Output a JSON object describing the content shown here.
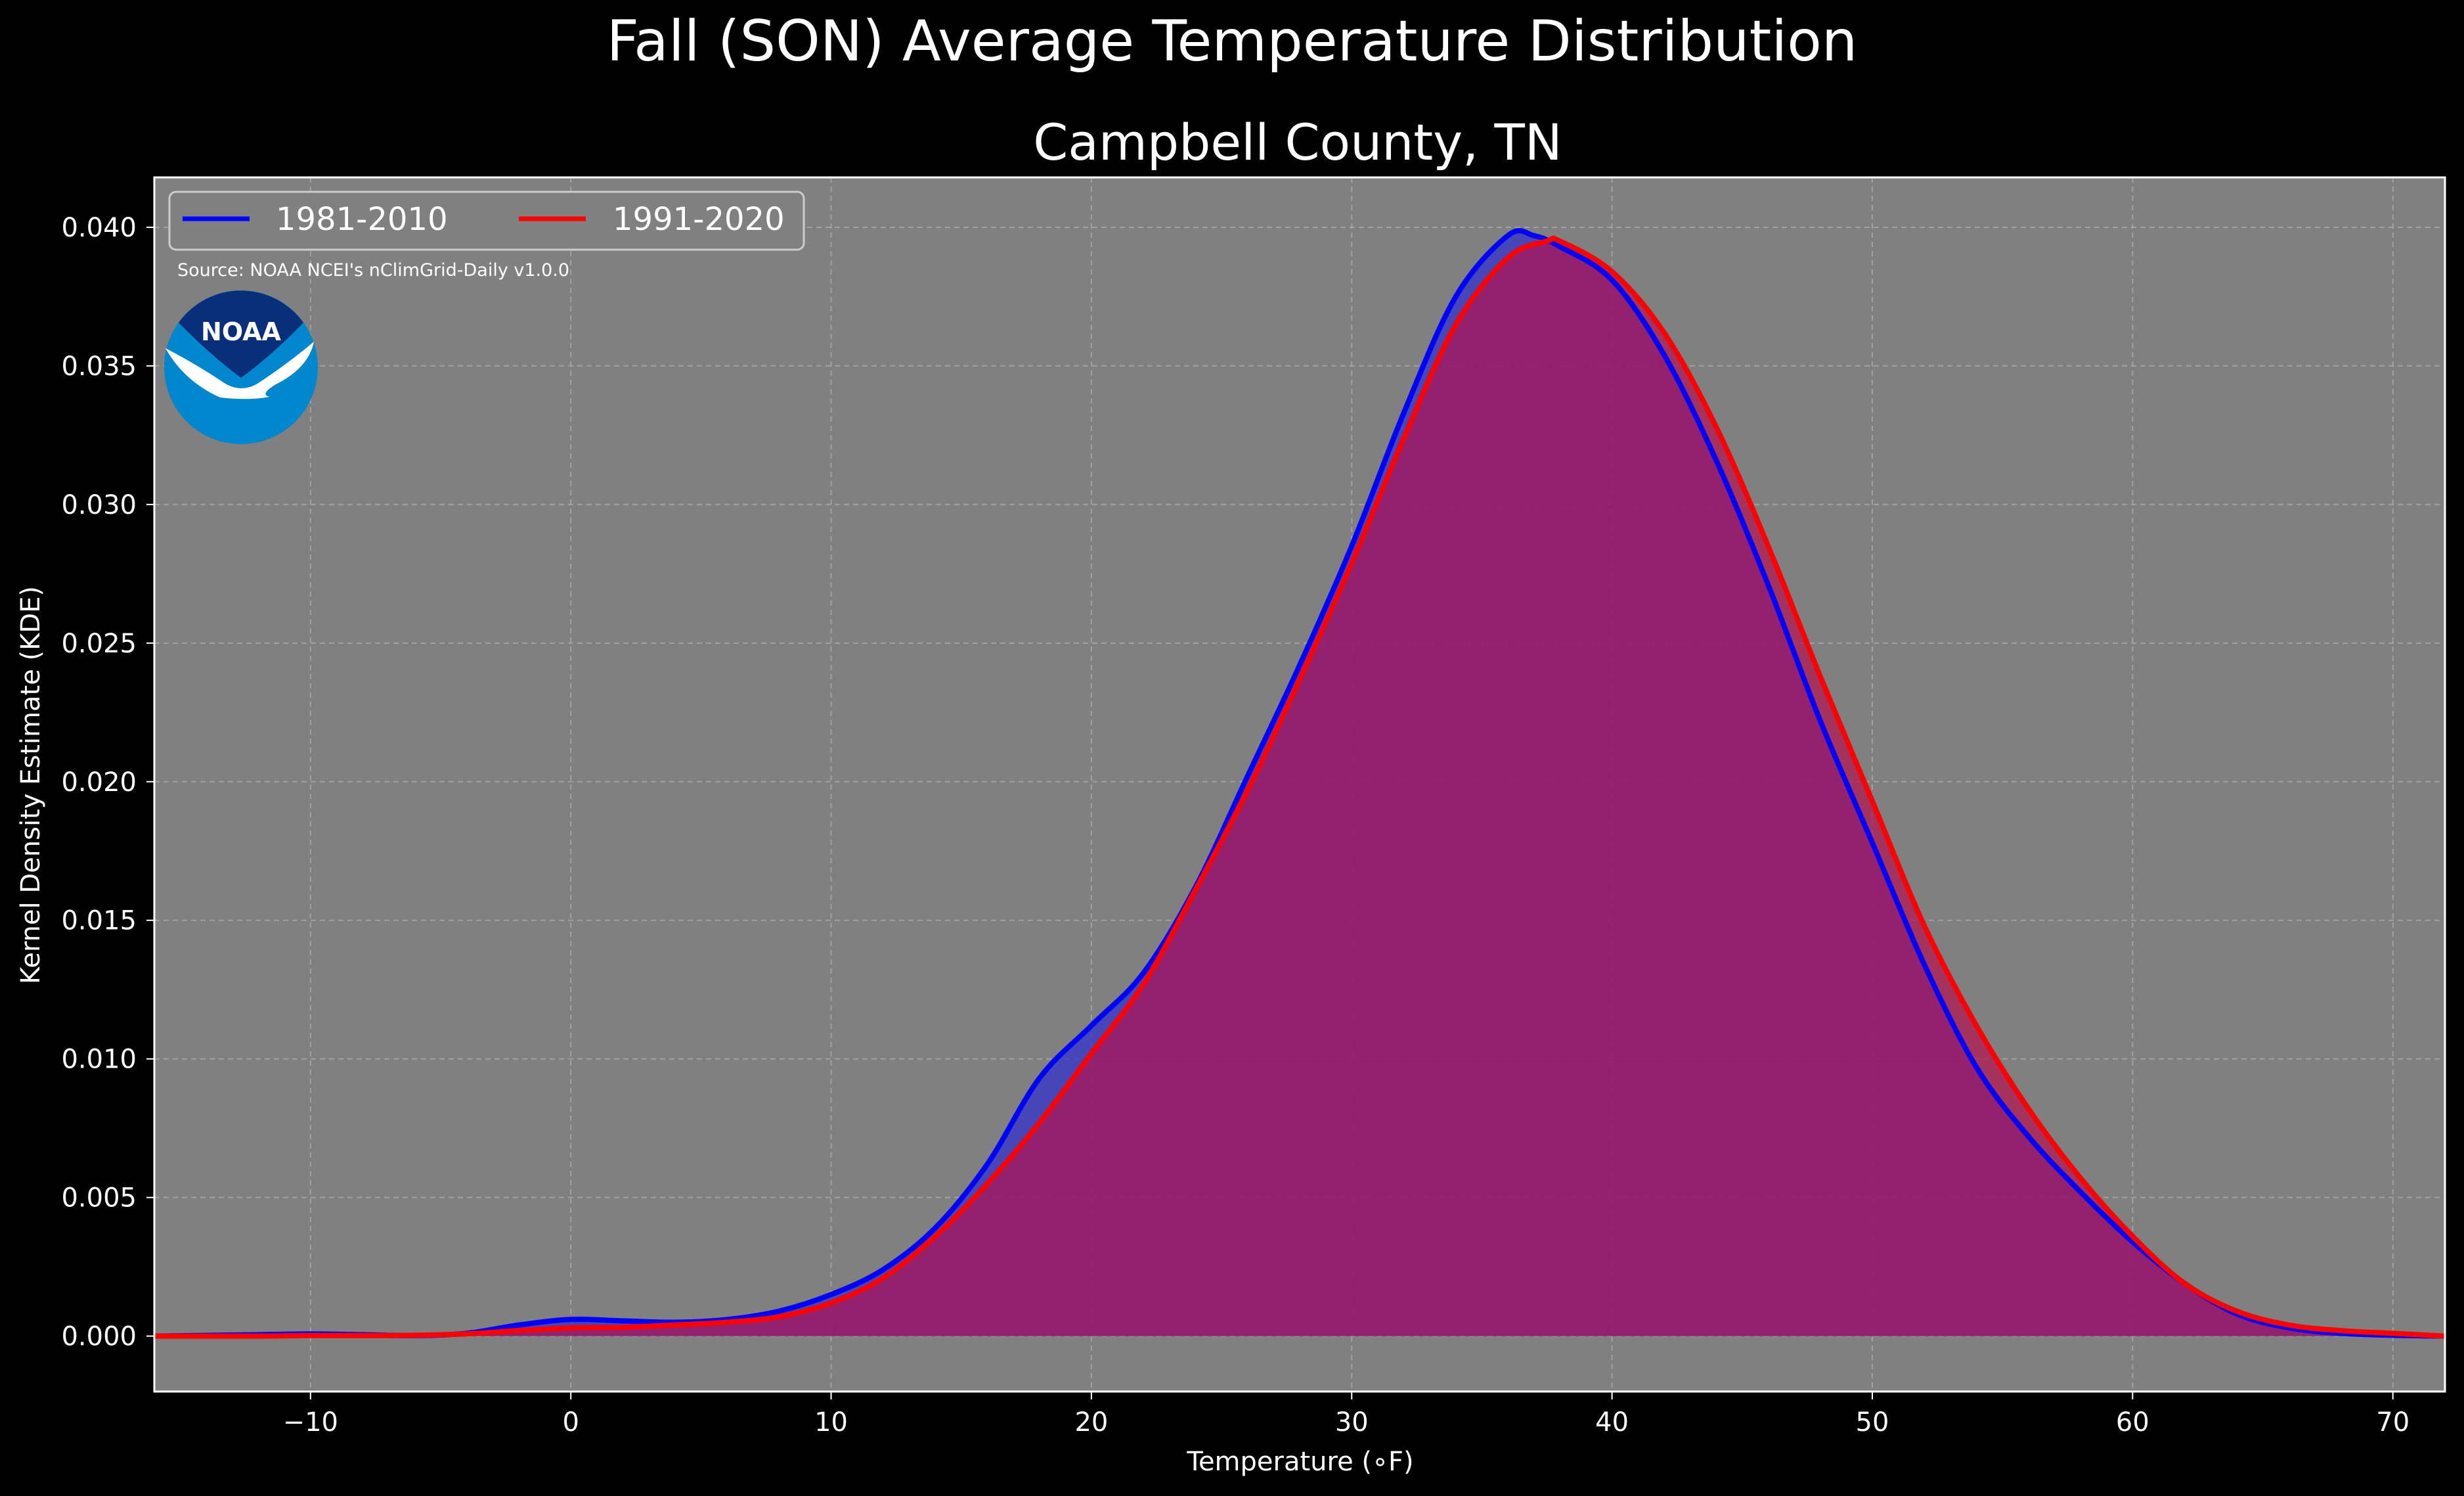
{
  "figure": {
    "suptitle": "Fall (SON) Average Temperature Distribution",
    "source": "Source: NOAA NCEI's nClimGrid-Daily v1.0.0",
    "logo_text": "NOAA",
    "background_color": "#000000",
    "plot_background_color": "#808080"
  },
  "chart_data": {
    "type": "area",
    "title": "Campbell County, TN",
    "xlabel": "Temperature (∘F)",
    "ylabel": "Kernel Density Estimate (KDE)",
    "xlim": [
      -16,
      72
    ],
    "ylim": [
      -0.002,
      0.0418
    ],
    "xticks": [
      -10,
      0,
      10,
      20,
      30,
      40,
      50,
      60,
      70
    ],
    "xtick_labels": [
      "−10",
      "0",
      "10",
      "20",
      "30",
      "40",
      "50",
      "60",
      "70"
    ],
    "yticks": [
      0.0,
      0.005,
      0.01,
      0.015,
      0.02,
      0.025,
      0.03,
      0.035,
      0.04
    ],
    "ytick_labels": [
      "0.000",
      "0.005",
      "0.010",
      "0.015",
      "0.020",
      "0.025",
      "0.030",
      "0.035",
      "0.040"
    ],
    "grid": true,
    "legend_position": "top-left",
    "series": [
      {
        "name": "1981-2010",
        "color": "#0000ff",
        "fill_color": "#3333cc",
        "points": [
          [
            -16,
            0.0
          ],
          [
            -12,
            5e-05
          ],
          [
            -10,
            8e-05
          ],
          [
            -8,
            5e-05
          ],
          [
            -6,
            2e-05
          ],
          [
            -4,
            0.0001
          ],
          [
            -2,
            0.0004
          ],
          [
            0,
            0.0006
          ],
          [
            2,
            0.00055
          ],
          [
            4,
            0.0005
          ],
          [
            6,
            0.0006
          ],
          [
            8,
            0.0009
          ],
          [
            10,
            0.0015
          ],
          [
            12,
            0.0024
          ],
          [
            14,
            0.0039
          ],
          [
            16,
            0.0062
          ],
          [
            18,
            0.0093
          ],
          [
            20,
            0.0112
          ],
          [
            22,
            0.0131
          ],
          [
            24,
            0.0162
          ],
          [
            26,
            0.0202
          ],
          [
            28,
            0.0242
          ],
          [
            30,
            0.0285
          ],
          [
            32,
            0.0333
          ],
          [
            34,
            0.0375
          ],
          [
            36,
            0.0397
          ],
          [
            37,
            0.0397
          ],
          [
            38,
            0.0393
          ],
          [
            40,
            0.0381
          ],
          [
            42,
            0.0354
          ],
          [
            44,
            0.0316
          ],
          [
            46,
            0.0271
          ],
          [
            48,
            0.0222
          ],
          [
            50,
            0.0178
          ],
          [
            52,
            0.0134
          ],
          [
            54,
            0.0097
          ],
          [
            56,
            0.0072
          ],
          [
            58,
            0.0052
          ],
          [
            60,
            0.0034
          ],
          [
            62,
            0.0019
          ],
          [
            64,
            0.0008
          ],
          [
            66,
            0.0003
          ],
          [
            68,
            0.0001
          ],
          [
            70,
            3e-05
          ],
          [
            72,
            0.0
          ]
        ]
      },
      {
        "name": "1991-2020",
        "color": "#ff0000",
        "fill_color": "#b3134f",
        "points": [
          [
            -16,
            0.0
          ],
          [
            -12,
            0.0
          ],
          [
            -10,
            2e-05
          ],
          [
            -8,
            2e-05
          ],
          [
            -6,
            3e-05
          ],
          [
            -4,
            8e-05
          ],
          [
            -2,
            0.0002
          ],
          [
            0,
            0.0003
          ],
          [
            2,
            0.00032
          ],
          [
            4,
            0.0004
          ],
          [
            6,
            0.0005
          ],
          [
            8,
            0.0007
          ],
          [
            10,
            0.0012
          ],
          [
            12,
            0.0021
          ],
          [
            14,
            0.0036
          ],
          [
            16,
            0.0055
          ],
          [
            18,
            0.0077
          ],
          [
            20,
            0.0102
          ],
          [
            22,
            0.0127
          ],
          [
            24,
            0.0161
          ],
          [
            26,
            0.0197
          ],
          [
            28,
            0.0237
          ],
          [
            30,
            0.0279
          ],
          [
            32,
            0.0324
          ],
          [
            34,
            0.0365
          ],
          [
            36,
            0.0389
          ],
          [
            37.5,
            0.0395
          ],
          [
            38,
            0.0395
          ],
          [
            40,
            0.0384
          ],
          [
            42,
            0.0362
          ],
          [
            44,
            0.0328
          ],
          [
            46,
            0.0285
          ],
          [
            48,
            0.0238
          ],
          [
            50,
            0.0193
          ],
          [
            52,
            0.0148
          ],
          [
            54,
            0.0112
          ],
          [
            56,
            0.0082
          ],
          [
            58,
            0.0057
          ],
          [
            60,
            0.0036
          ],
          [
            62,
            0.0019
          ],
          [
            64,
            0.0009
          ],
          [
            66,
            0.0004
          ],
          [
            68,
            0.0002
          ],
          [
            70,
            0.0001
          ],
          [
            72,
            0.0
          ]
        ]
      }
    ]
  }
}
